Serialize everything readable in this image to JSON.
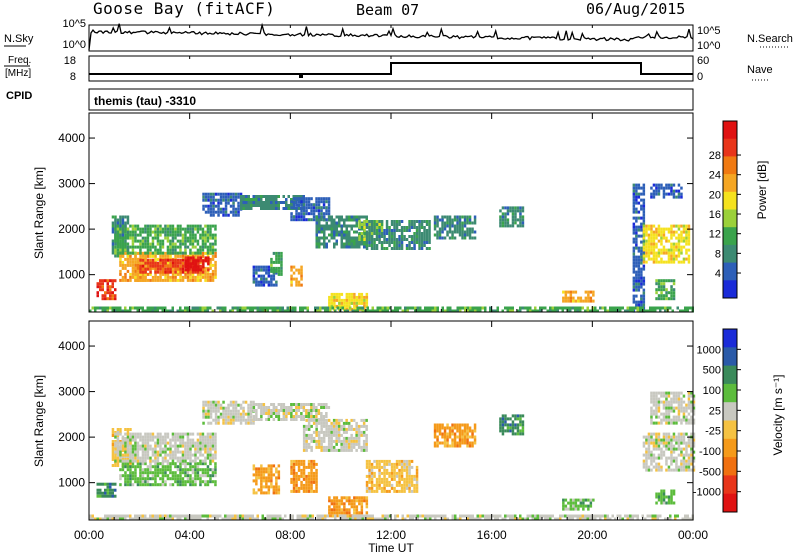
{
  "header": {
    "station": "Goose Bay (fitACF)",
    "beam": "Beam 07",
    "date": "06/Aug/2015"
  },
  "status_panels": {
    "left_labels": {
      "nsky": "N.Sky",
      "freq": "Freq.",
      "freq_unit": "[MHz]",
      "cpid": "CPID"
    },
    "right_labels": {
      "nsearch": "N.Search",
      "nave": "Nave"
    },
    "noise_ticks_left": [
      "10^5",
      "10^0"
    ],
    "noise_ticks_right": [
      "10^5",
      "10^0"
    ],
    "freq_ticks": [
      "18",
      "8"
    ],
    "nave_ticks": [
      "60",
      "0"
    ],
    "cpid_text": "themis (tau) -3310"
  },
  "chart_data": [
    {
      "type": "heatmap",
      "name": "power",
      "ylabel": "Slant Range [km]",
      "yticks": [
        1000,
        2000,
        3000,
        4000
      ],
      "ylim": [
        180,
        4550
      ],
      "colorbar": {
        "label": "Power [dB]",
        "ticks": [
          "4",
          "8",
          "12",
          "16",
          "20",
          "24",
          "28"
        ],
        "colors": [
          "#1a2bd8",
          "#2d5fb8",
          "#3c8a72",
          "#3aa34c",
          "#9bd13a",
          "#f5e21e",
          "#f5a623",
          "#f07a12",
          "#e8351a",
          "#e01212"
        ]
      },
      "regions": [
        {
          "t": [
            0.3,
            1.0
          ],
          "r": [
            500,
            900
          ],
          "c": 8
        },
        {
          "t": [
            0.9,
            1.5
          ],
          "r": [
            1400,
            2300
          ],
          "c": 2
        },
        {
          "t": [
            1.2,
            2.2
          ],
          "r": [
            900,
            1500
          ],
          "c": 6
        },
        {
          "t": [
            1.8,
            5.0
          ],
          "r": [
            850,
            1500
          ],
          "c": 6
        },
        {
          "t": [
            2.0,
            4.5
          ],
          "r": [
            1050,
            1350
          ],
          "c": 8
        },
        {
          "t": [
            3.8,
            4.7
          ],
          "r": [
            1100,
            1400
          ],
          "c": 9
        },
        {
          "t": [
            1.0,
            5.0
          ],
          "r": [
            1450,
            2100
          ],
          "c": 3
        },
        {
          "t": [
            4.5,
            6.0
          ],
          "r": [
            2300,
            2800
          ],
          "c": 1
        },
        {
          "t": [
            6.0,
            8.5
          ],
          "r": [
            2450,
            2750
          ],
          "c": 2
        },
        {
          "t": [
            8.0,
            9.5
          ],
          "r": [
            2200,
            2700
          ],
          "c": 1
        },
        {
          "t": [
            9.0,
            11.0
          ],
          "r": [
            1600,
            2300
          ],
          "c": 2
        },
        {
          "t": [
            10.7,
            11.6
          ],
          "r": [
            1800,
            2200
          ],
          "c": 4
        },
        {
          "t": [
            6.5,
            7.4
          ],
          "r": [
            800,
            1200
          ],
          "c": 1
        },
        {
          "t": [
            7.2,
            7.6
          ],
          "r": [
            1000,
            1500
          ],
          "c": 3
        },
        {
          "t": [
            8.0,
            8.4
          ],
          "r": [
            800,
            1200
          ],
          "c": 6
        },
        {
          "t": [
            9.5,
            11.0
          ],
          "r": [
            250,
            600
          ],
          "c": 5
        },
        {
          "t": [
            11.0,
            13.5
          ],
          "r": [
            1600,
            2200
          ],
          "c": 2
        },
        {
          "t": [
            13.7,
            15.3
          ],
          "r": [
            1800,
            2300
          ],
          "c": 2
        },
        {
          "t": [
            16.3,
            17.2
          ],
          "r": [
            2100,
            2500
          ],
          "c": 2
        },
        {
          "t": [
            18.8,
            20.0
          ],
          "r": [
            450,
            650
          ],
          "c": 6
        },
        {
          "t": [
            21.6,
            22.0
          ],
          "r": [
            200,
            3000
          ],
          "c": 1
        },
        {
          "t": [
            22.0,
            23.8
          ],
          "r": [
            1300,
            2100
          ],
          "c": 5
        },
        {
          "t": [
            22.3,
            23.5
          ],
          "r": [
            2700,
            3000
          ],
          "c": 1
        },
        {
          "t": [
            22.5,
            23.2
          ],
          "r": [
            500,
            900
          ],
          "c": 3
        },
        {
          "t": [
            0.0,
            24.0
          ],
          "r": [
            180,
            300
          ],
          "c": 3
        }
      ]
    },
    {
      "type": "heatmap",
      "name": "velocity",
      "xlabel": "Time UT",
      "ylabel": "Slant Range [km]",
      "xticks": [
        "00:00",
        "04:00",
        "08:00",
        "12:00",
        "16:00",
        "20:00",
        "00:00"
      ],
      "yticks": [
        1000,
        2000,
        3000,
        4000
      ],
      "ylim": [
        180,
        4550
      ],
      "colorbar": {
        "label": "Velocity [m s⁻¹]",
        "ticks": [
          "1000",
          "500",
          "100",
          "25",
          "-25",
          "-100",
          "-500",
          "-1000"
        ],
        "colors": [
          "#1a2bd8",
          "#2a5aa8",
          "#3a8a5a",
          "#5cbc3c",
          "#c8c8c0",
          "#f5c242",
          "#f59a1a",
          "#f07010",
          "#e8351a",
          "#e01212"
        ]
      },
      "regions": [
        {
          "t": [
            0.3,
            1.0
          ],
          "r": [
            700,
            1000
          ],
          "c": 2
        },
        {
          "t": [
            0.9,
            1.6
          ],
          "r": [
            1400,
            2200
          ],
          "c": 5
        },
        {
          "t": [
            1.2,
            5.0
          ],
          "r": [
            950,
            1450
          ],
          "c": 3
        },
        {
          "t": [
            1.0,
            5.0
          ],
          "r": [
            1450,
            2100
          ],
          "c": 4
        },
        {
          "t": [
            4.5,
            6.5
          ],
          "r": [
            2300,
            2800
          ],
          "c": 4
        },
        {
          "t": [
            6.5,
            9.5
          ],
          "r": [
            2400,
            2750
          ],
          "c": 4
        },
        {
          "t": [
            8.5,
            11.0
          ],
          "r": [
            1700,
            2400
          ],
          "c": 4
        },
        {
          "t": [
            6.5,
            7.5
          ],
          "r": [
            800,
            1400
          ],
          "c": 6
        },
        {
          "t": [
            8.0,
            9.0
          ],
          "r": [
            800,
            1500
          ],
          "c": 6
        },
        {
          "t": [
            9.5,
            11.0
          ],
          "r": [
            250,
            700
          ],
          "c": 6
        },
        {
          "t": [
            11.0,
            13.0
          ],
          "r": [
            800,
            1500
          ],
          "c": 5
        },
        {
          "t": [
            13.7,
            15.3
          ],
          "r": [
            1800,
            2300
          ],
          "c": 6
        },
        {
          "t": [
            16.3,
            17.2
          ],
          "r": [
            2100,
            2500
          ],
          "c": 2
        },
        {
          "t": [
            18.8,
            20.0
          ],
          "r": [
            450,
            650
          ],
          "c": 3
        },
        {
          "t": [
            22.0,
            24.0
          ],
          "r": [
            1300,
            2100
          ],
          "c": 4
        },
        {
          "t": [
            22.3,
            24.0
          ],
          "r": [
            2300,
            3000
          ],
          "c": 4
        },
        {
          "t": [
            22.5,
            23.2
          ],
          "r": [
            550,
            850
          ],
          "c": 3
        },
        {
          "t": [
            0.0,
            24.0
          ],
          "r": [
            180,
            300
          ],
          "c": 4
        }
      ]
    }
  ]
}
